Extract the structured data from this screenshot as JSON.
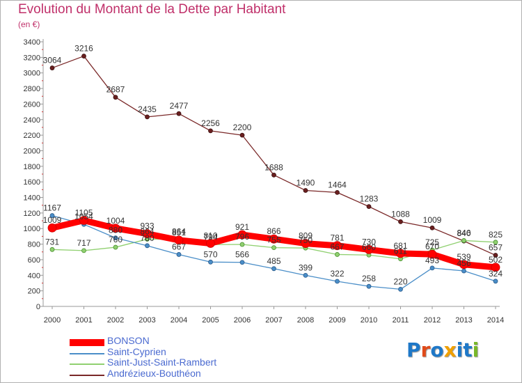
{
  "title": "Evolution du Montant de la Dette par Habitant",
  "unit": "(en €)",
  "logo": {
    "letters": [
      "P",
      "r",
      "o",
      "x",
      "i",
      "t",
      "i"
    ],
    "colors": [
      "#1e78c8",
      "#e04b1a",
      "#1e78c8",
      "#f0a000",
      "#1e78c8",
      "#1e78c8",
      "#79b829"
    ]
  },
  "chart_data": {
    "type": "line",
    "title": "Evolution du Montant de la Dette par Habitant",
    "ylabel": "(en €)",
    "xlabel": "",
    "ylim": [
      0,
      3400
    ],
    "yticks": [
      0,
      200,
      400,
      600,
      800,
      1000,
      1200,
      1400,
      1600,
      1800,
      2000,
      2200,
      2400,
      2600,
      2800,
      3000,
      3200,
      3400
    ],
    "grid": false,
    "legend": "bottom-left",
    "x": [
      "2000",
      "2001",
      "2002",
      "2003",
      "2004",
      "2005",
      "2006",
      "2007",
      "2008",
      "2009",
      "2010",
      "2011",
      "2012",
      "2013",
      "2014"
    ],
    "series": [
      {
        "name": "Andrézieux-Bouthéon",
        "color": "#7a2828",
        "values": [
          3064,
          3216,
          2687,
          2435,
          2477,
          2256,
          2200,
          1688,
          1490,
          1464,
          1283,
          1088,
          1009,
          840,
          657
        ]
      },
      {
        "name": "Saint-Just-Saint-Rambert",
        "color": "#90d070",
        "values": [
          731,
          717,
          760,
          864,
          864,
          794,
          796,
          755,
          750,
          667,
          660,
          611,
          725,
          846,
          825
        ]
      },
      {
        "name": "Saint-Cyprien",
        "color": "#4a8ec8",
        "values": [
          1167,
          1054,
          880,
          780,
          667,
          570,
          566,
          485,
          399,
          322,
          258,
          220,
          493,
          456,
          324
        ]
      },
      {
        "name": "BONSON",
        "color": "#ff0000",
        "values": [
          1009,
          1105,
          1004,
          933,
          851,
          810,
          921,
          866,
          809,
          781,
          730,
          681,
          670,
          539,
          502
        ]
      }
    ]
  }
}
